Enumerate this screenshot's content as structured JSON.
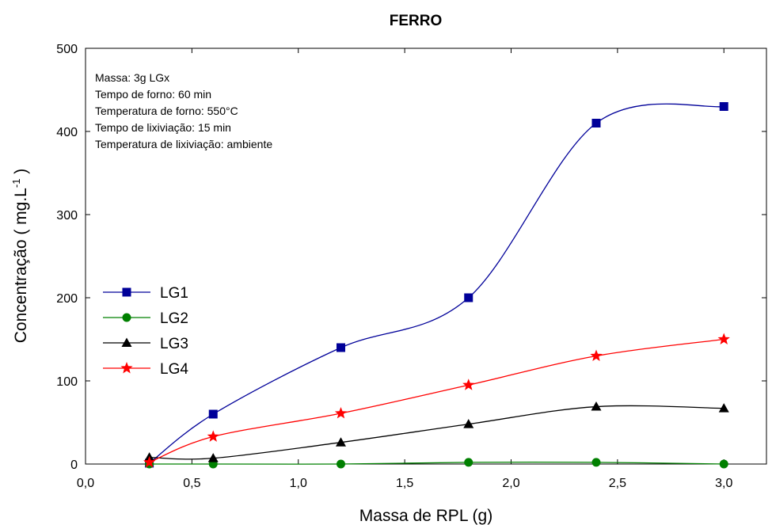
{
  "chart_data": {
    "type": "scatter",
    "title": "FERRO",
    "xlabel": "Massa de RPL (g)",
    "ylabel": "Concentração ( mg.L",
    "ylabel_superscript": "-1",
    "ylabel_suffix": " )",
    "xlim": [
      0.0,
      3.2
    ],
    "ylim": [
      0,
      500
    ],
    "x_ticks": [
      0.0,
      0.5,
      1.0,
      1.5,
      2.0,
      2.5,
      3.0
    ],
    "x_tick_labels": [
      "0,0",
      "0,5",
      "1,0",
      "1,5",
      "2,0",
      "2,5",
      "3,0"
    ],
    "y_ticks": [
      0,
      100,
      200,
      300,
      400,
      500
    ],
    "y_tick_labels": [
      "0",
      "100",
      "200",
      "300",
      "400",
      "500"
    ],
    "grid": false,
    "legend_position": "left-middle",
    "annotations": [
      "Massa: 3g LGx",
      "Tempo de forno: 60 min",
      "Temperatura de forno: 550°C",
      "Tempo de lixiviação: 15 min",
      "Temperatura de lixiviação: ambiente"
    ],
    "series": [
      {
        "name": "LG1",
        "color": "#000099",
        "marker": "square",
        "x": [
          0.3,
          0.6,
          1.2,
          1.8,
          2.4,
          3.0
        ],
        "y": [
          1,
          60,
          140,
          200,
          410,
          430
        ]
      },
      {
        "name": "LG2",
        "color": "#008000",
        "marker": "circle",
        "x": [
          0.3,
          0.6,
          1.2,
          1.8,
          2.4,
          3.0
        ],
        "y": [
          0,
          0,
          0,
          2,
          2,
          0
        ]
      },
      {
        "name": "LG3",
        "color": "#000000",
        "marker": "triangle",
        "x": [
          0.3,
          0.6,
          1.2,
          1.8,
          2.4,
          3.0
        ],
        "y": [
          8,
          7,
          26,
          48,
          69,
          67
        ]
      },
      {
        "name": "LG4",
        "color": "#ff0000",
        "marker": "star",
        "x": [
          0.3,
          0.6,
          1.2,
          1.8,
          2.4,
          3.0
        ],
        "y": [
          2,
          33,
          61,
          95,
          130,
          150
        ]
      }
    ]
  }
}
